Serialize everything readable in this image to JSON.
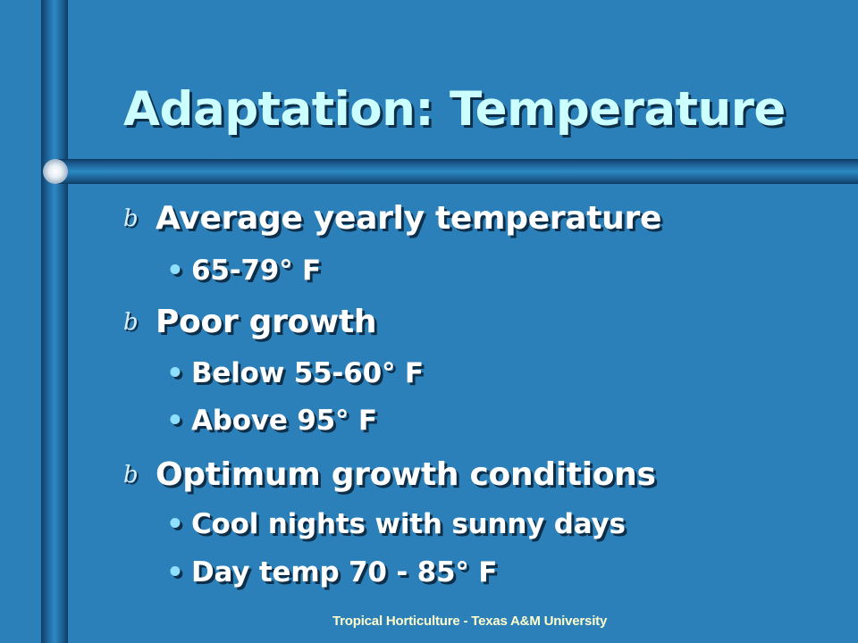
{
  "slide": {
    "title": "Adaptation: Temperature",
    "bullets": [
      {
        "bullet_glyph": "b",
        "text": "Average yearly temperature",
        "sub": [
          {
            "bullet_glyph": "•",
            "text": "65-79° F"
          }
        ]
      },
      {
        "bullet_glyph": "b",
        "text": "Poor growth",
        "sub": [
          {
            "bullet_glyph": "•",
            "text": "Below 55-60° F"
          },
          {
            "bullet_glyph": "•",
            "text": "Above 95° F"
          }
        ]
      },
      {
        "bullet_glyph": "b",
        "text": "Optimum growth conditions",
        "sub": [
          {
            "bullet_glyph": "•",
            "text": "Cool nights with sunny days"
          },
          {
            "bullet_glyph": "•",
            "text": "Day temp 70 - 85° F"
          }
        ]
      }
    ],
    "footer": "Tropical Horticulture - Texas A&M University"
  },
  "colors": {
    "background": "#2b80b9",
    "title": "#ccffff",
    "body_text": "#ffffff",
    "sub_bullet": "#8fe0ff",
    "footer": "#ffffcc",
    "shadow": "#0d2f4a"
  }
}
